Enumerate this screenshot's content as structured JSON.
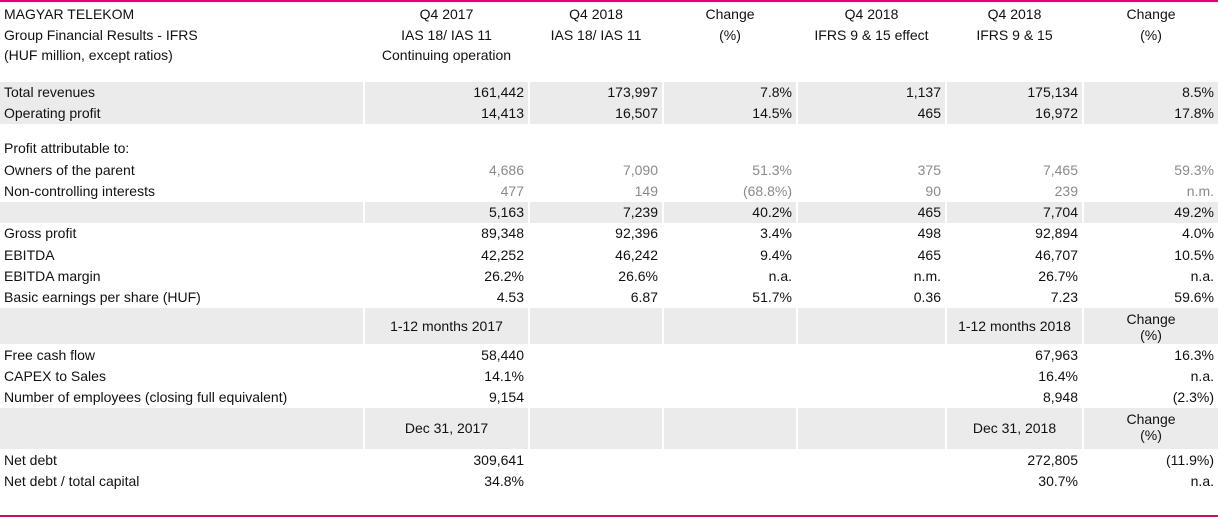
{
  "header": {
    "title": [
      "MAGYAR TELEKOM",
      "Group Financial Results - IFRS",
      "(HUF million, except ratios)"
    ],
    "columns": [
      [
        "Q4 2017",
        "IAS 18/ IAS 11",
        "Continuing operation"
      ],
      [
        "Q4 2018",
        "IAS 18/ IAS 11",
        ""
      ],
      [
        "Change",
        "(%)",
        ""
      ],
      [
        "Q4 2018",
        "IFRS 9 & 15 effect",
        ""
      ],
      [
        "Q4 2018",
        "IFRS 9 & 15",
        ""
      ],
      [
        "Change",
        "(%)",
        ""
      ]
    ]
  },
  "rows": {
    "total_revenues": {
      "label": "Total revenues",
      "v": [
        "161,442",
        "173,997",
        "7.8%",
        "1,137",
        "175,134",
        "8.5%"
      ]
    },
    "operating_profit": {
      "label": "Operating  profit",
      "v": [
        "14,413",
        "16,507",
        "14.5%",
        "465",
        "16,972",
        "17.8%"
      ]
    },
    "profit_attributable_label": "Profit attributable to:",
    "owners_parent": {
      "label": "Owners of the parent",
      "v": [
        "4,686",
        "7,090",
        "51.3%",
        "375",
        "7,465",
        "59.3%"
      ]
    },
    "non_controlling": {
      "label": "Non-controlling interests",
      "v": [
        "477",
        "149",
        "(68.8%)",
        "90",
        "239",
        "n.m."
      ]
    },
    "profit_total": {
      "label": "",
      "v": [
        "5,163",
        "7,239",
        "40.2%",
        "465",
        "7,704",
        "49.2%"
      ]
    },
    "gross_profit": {
      "label": "Gross profit",
      "v": [
        "89,348",
        "92,396",
        "3.4%",
        "498",
        "92,894",
        "4.0%"
      ]
    },
    "ebitda": {
      "label": "EBITDA",
      "v": [
        "42,252",
        "46,242",
        "9.4%",
        "465",
        "46,707",
        "10.5%"
      ]
    },
    "ebitda_margin": {
      "label": "EBITDA margin",
      "v": [
        "26.2%",
        "26.6%",
        "n.a.",
        "n.m.",
        "26.7%",
        "n.a."
      ]
    },
    "eps": {
      "label": "Basic earnings per share (HUF)",
      "v": [
        "4.53",
        "6.87",
        "51.7%",
        "0.36",
        "7.23",
        "59.6%"
      ]
    }
  },
  "subheader1": {
    "left": "1-12 months 2017",
    "right": "1-12 months 2018",
    "change": [
      "Change",
      "(%)"
    ]
  },
  "annual": {
    "free_cash_flow": {
      "label": "Free cash flow",
      "v": [
        "58,440",
        "67,963",
        "16.3%"
      ]
    },
    "capex_to_sales": {
      "label": "CAPEX to Sales",
      "v": [
        "14.1%",
        "16.4%",
        "n.a."
      ]
    },
    "employees": {
      "label": "Number of employees (closing full equivalent)",
      "v": [
        "9,154",
        "8,948",
        "(2.3%)"
      ]
    }
  },
  "subheader2": {
    "left": "Dec 31, 2017",
    "right": "Dec 31, 2018",
    "change": [
      "Change",
      "(%)"
    ]
  },
  "balance": {
    "net_debt": {
      "label": "Net debt",
      "v": [
        "309,641",
        "272,805",
        "(11.9%)"
      ]
    },
    "net_debt_capital": {
      "label": "Net debt / total capital",
      "v": [
        "34.8%",
        "30.7%",
        "n.a."
      ]
    }
  }
}
